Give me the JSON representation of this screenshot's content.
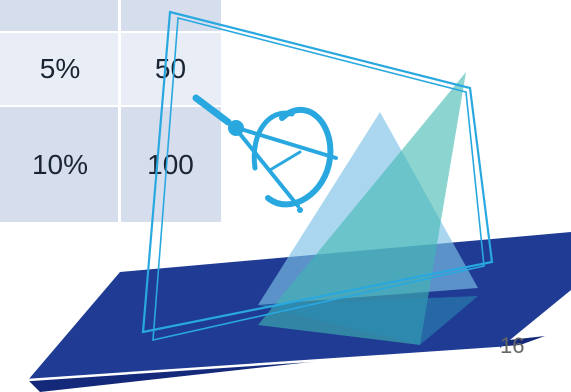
{
  "table": {
    "rows": [
      {
        "percent": "",
        "value": ""
      },
      {
        "percent": "5%",
        "value": "50"
      },
      {
        "percent": "10%",
        "value": "100"
      }
    ]
  },
  "decoration": {
    "icon": "compass-drafting-icon",
    "colors": {
      "base": "#1f3b93",
      "frame": "#29a8e0",
      "teal": "#3fb7b0",
      "sky": "#7cc1e6"
    }
  },
  "slide": {
    "page_number": "16"
  }
}
